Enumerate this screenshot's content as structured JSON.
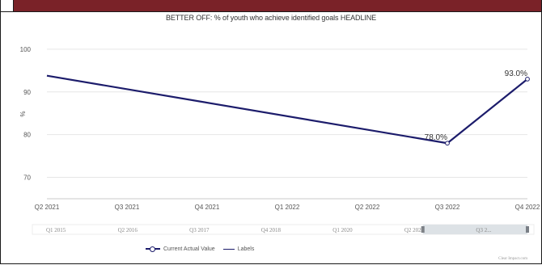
{
  "chart_data": {
    "type": "line",
    "title": "BETTER OFF: % of youth who achieve identified goals HEADLINE",
    "xlabel": "",
    "ylabel": "%",
    "categories": [
      "Q2 2021",
      "Q3 2021",
      "Q4 2021",
      "Q1 2022",
      "Q2 2022",
      "Q3 2022",
      "Q4 2022"
    ],
    "ylim": [
      65,
      103
    ],
    "yticks": [
      70,
      80,
      90,
      100
    ],
    "grid": true,
    "legend_position": "bottom",
    "series": [
      {
        "name": "Current Actual Value",
        "color": "#1c1c6b",
        "points": [
          {
            "x": "Q2 2021",
            "y": 93.8
          },
          {
            "x": "Q3 2022",
            "y": 78.0,
            "label": "78.0%"
          },
          {
            "x": "Q4 2022",
            "y": 93.0,
            "label": "93.0%"
          }
        ]
      }
    ],
    "legend": [
      "Current Actual Value",
      "Labels"
    ],
    "navigator": {
      "labels": [
        "Q1 2015",
        "Q2 2016",
        "Q3 2017",
        "Q4 2018",
        "Q1 2020",
        "Q2 2021",
        "Q3 2..."
      ],
      "selection_from": "Q2 2021",
      "selection_to": "Q4 2022"
    },
    "credit": "Clear Impact.com"
  }
}
